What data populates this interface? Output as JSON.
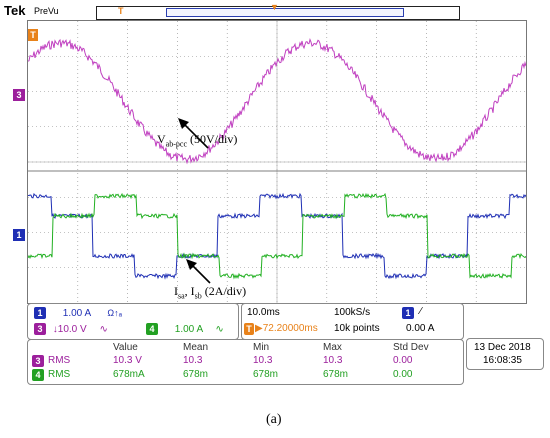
{
  "topbar": {
    "brand": "Tek",
    "mode": "PreVu",
    "trigger_marker": "T"
  },
  "scope": {
    "voltage_annotation": {
      "main": "V",
      "sub": "ab-pcc",
      "rest": " (50V/div)"
    },
    "current_annotation": {
      "main": "I",
      "sub1": "sa",
      "mid": ", I",
      "sub2": "sb",
      "rest": " (2A/div)"
    },
    "marker_ch3": "3",
    "marker_ch1": "1",
    "trigger_label": "T",
    "colors": {
      "ch3": "#c040c0",
      "ch1": "#1f2fb4",
      "ch4": "#22b022",
      "grid": "#888888"
    }
  },
  "channels": {
    "ch1": {
      "num": "1",
      "scale": "1.00 A",
      "extra": "Ω↑ₐ",
      "color": "#1f2fb4"
    },
    "ch3": {
      "num": "3",
      "scale": "↓10.0 V",
      "extra": "∿",
      "color": "#9c1f9c"
    },
    "ch4": {
      "num": "4",
      "scale": "1.00 A",
      "extra": "∿",
      "color": "#22a022"
    }
  },
  "timebase": {
    "scale": "10.0ms",
    "rate": "100kS/s",
    "trigger_pos": "▶72.20000ms",
    "points": "10k points",
    "trigger_ch": "1",
    "trigger_edge": "∕",
    "trigger_level": "0.00 A"
  },
  "measurements": {
    "headers": [
      "Value",
      "Mean",
      "Min",
      "Max",
      "Std Dev"
    ],
    "rows": [
      {
        "ch": "3",
        "label": "RMS",
        "values": [
          "10.3 V",
          "10.3",
          "10.3",
          "10.3",
          "0.00"
        ],
        "color": "#9c1f9c"
      },
      {
        "ch": "4",
        "label": "RMS",
        "values": [
          "678mA",
          "678m",
          "678m",
          "678m",
          "0.00"
        ],
        "color": "#22a022"
      }
    ]
  },
  "datetime": {
    "date": "13 Dec  2018",
    "time": "16:08:35"
  },
  "caption": "(a)"
}
